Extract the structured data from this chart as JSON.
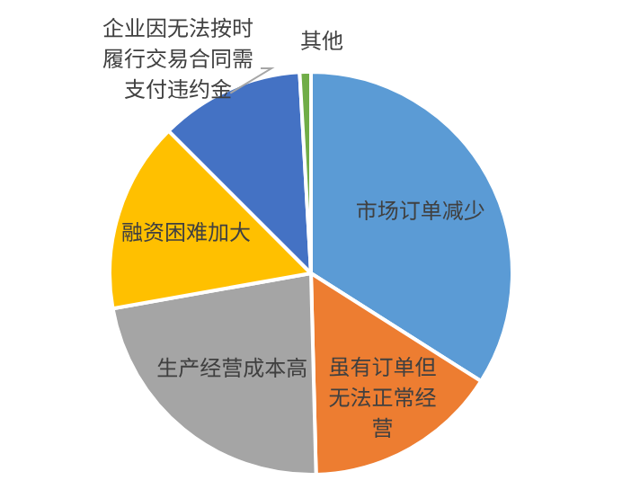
{
  "chart_data": {
    "type": "pie",
    "categories": [
      "市场订单减少",
      "虽有订单但无法正常经营",
      "生产经营成本高",
      "融资困难加大",
      "企业因无法按时履行交易合同需支付违约金",
      "其他"
    ],
    "values": [
      34,
      15.6,
      22.6,
      15.3,
      11.6,
      0.9
    ],
    "colors": [
      "#5b9bd5",
      "#ed7d31",
      "#a5a5a5",
      "#ffc000",
      "#4472c4",
      "#70ad47"
    ],
    "legend": false
  }
}
